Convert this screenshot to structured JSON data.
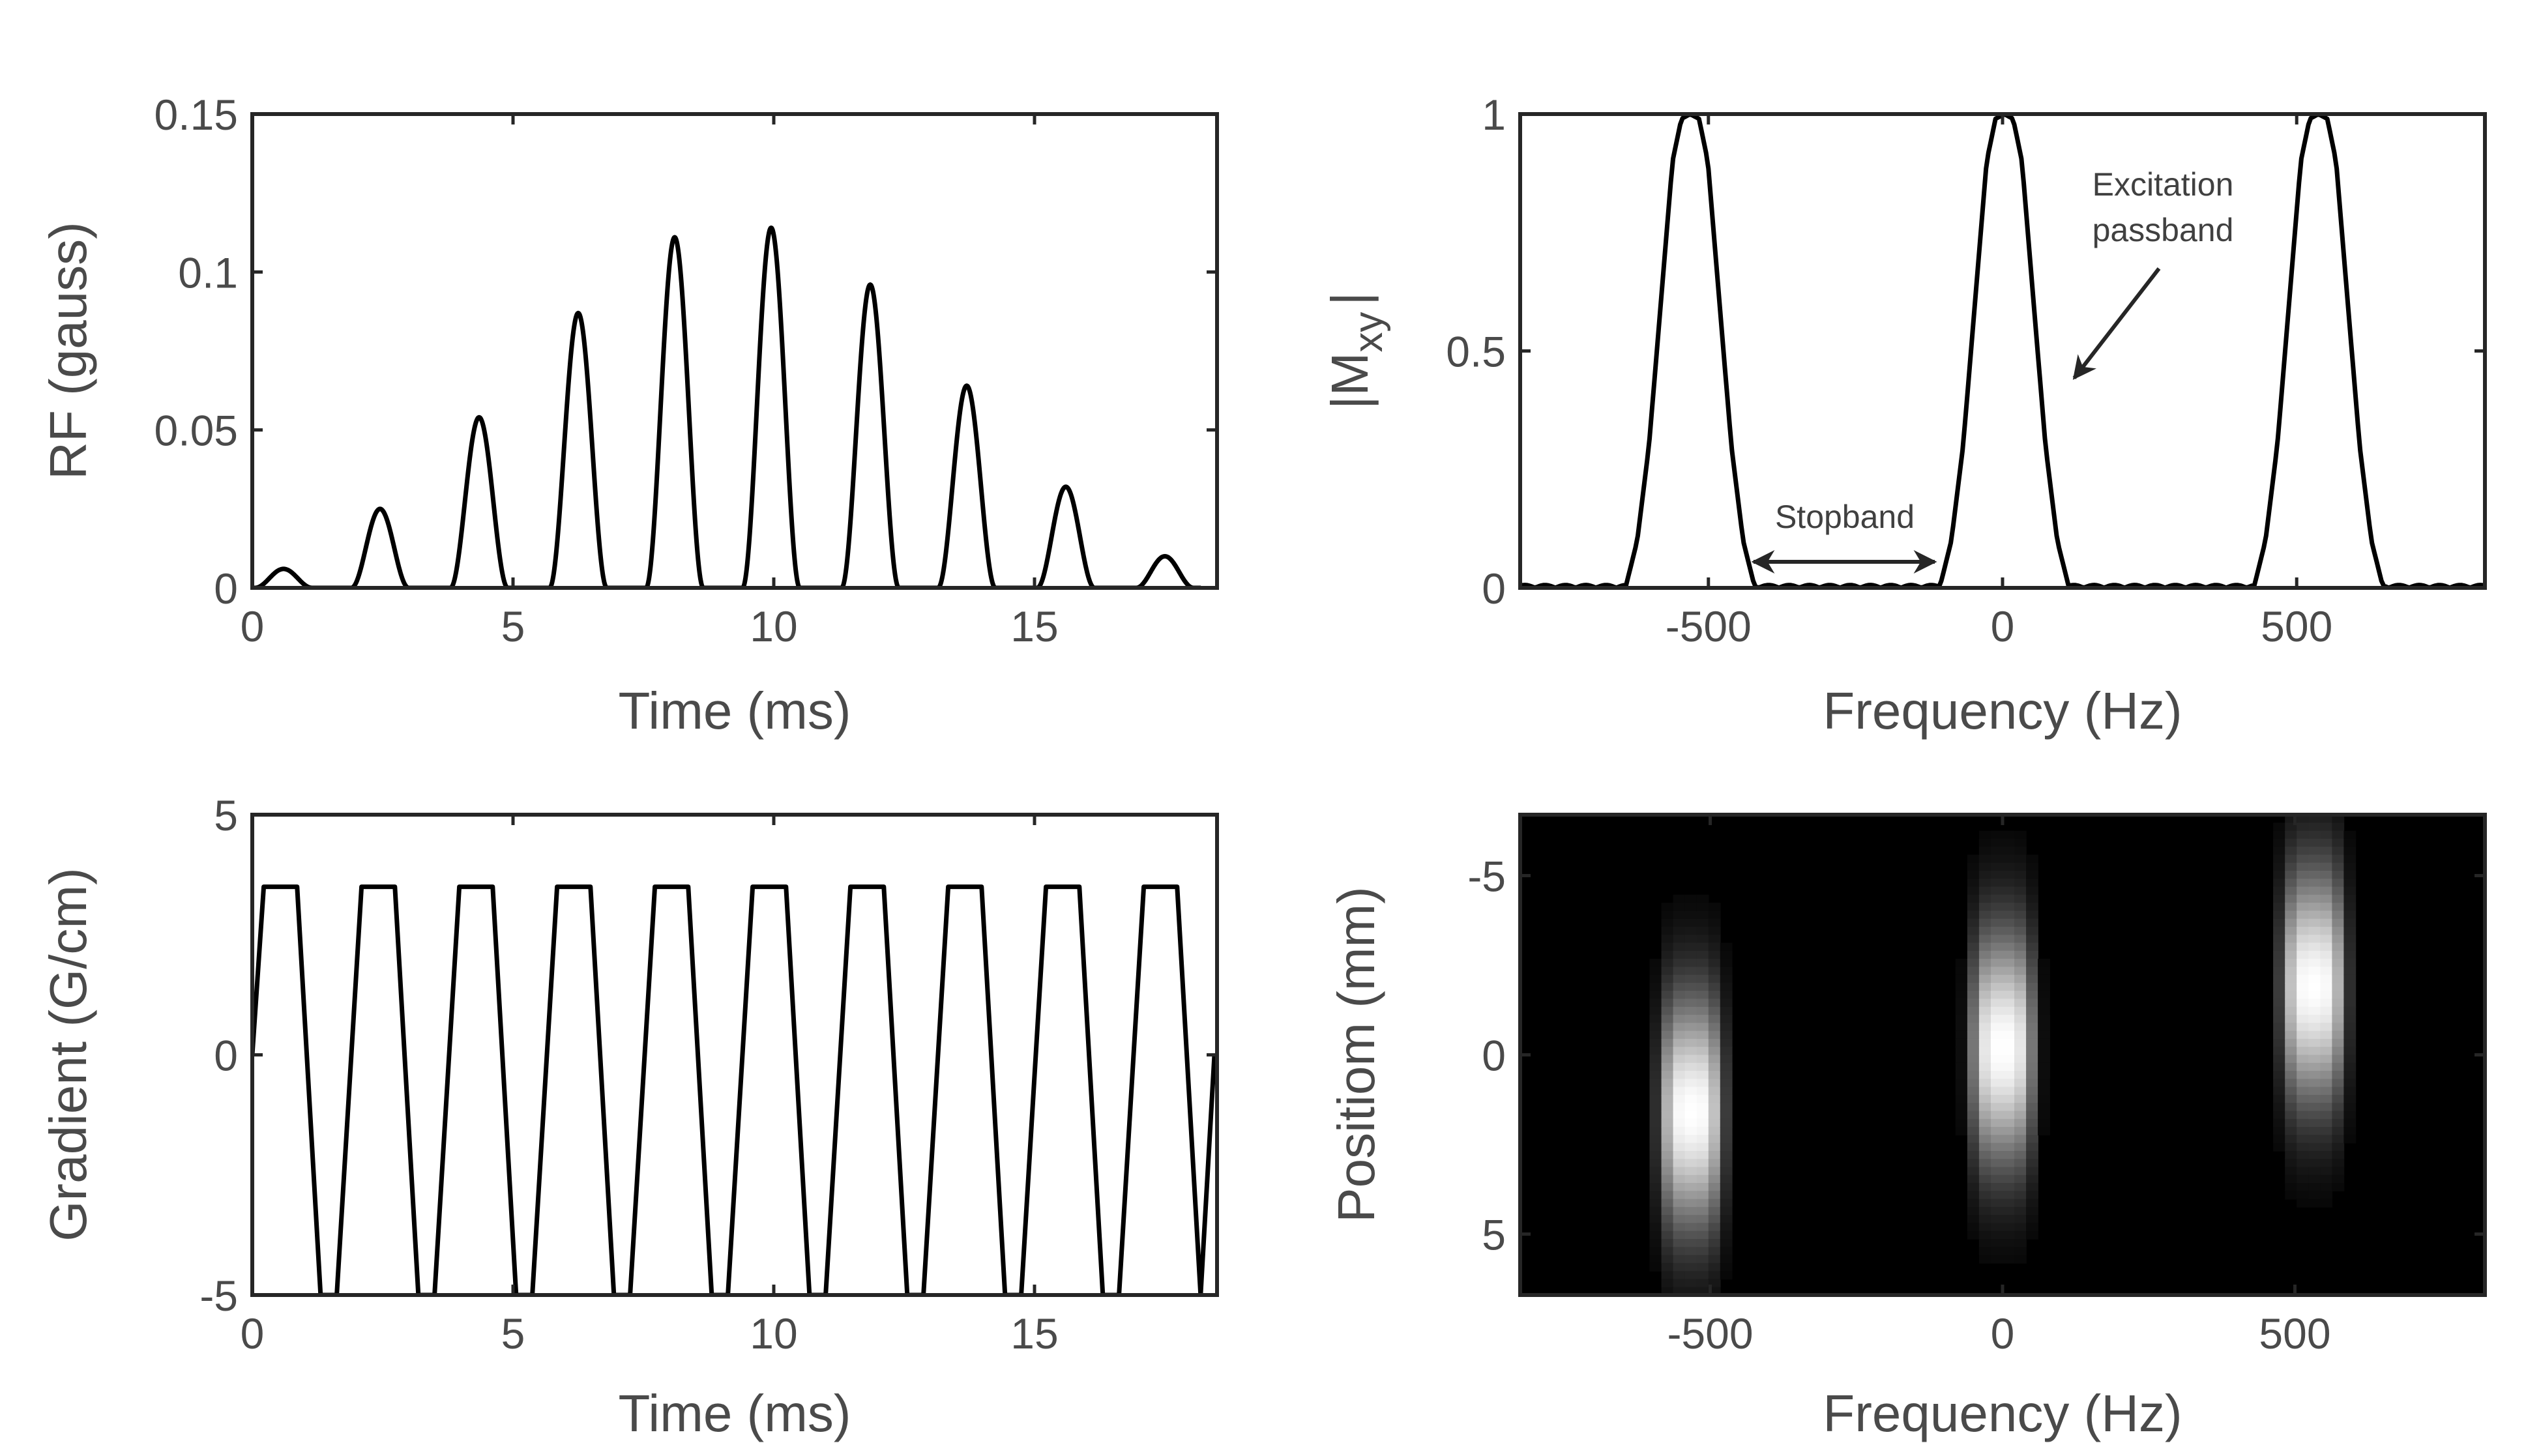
{
  "chart_data": [
    {
      "type": "line",
      "xlabel": "Time (ms)",
      "ylabel": "RF (gauss)",
      "xlim": [
        0,
        18.5
      ],
      "ylim": [
        0,
        0.15
      ],
      "xticks": [
        "0",
        "5",
        "10",
        "15"
      ],
      "yticks": [
        "0",
        "0.05",
        "0.1",
        "0.15"
      ],
      "grid": false,
      "series": [
        {
          "peak_times": [
            0.6,
            2.45,
            4.35,
            6.25,
            8.1,
            9.95,
            11.85,
            13.7,
            15.6,
            17.5
          ],
          "peak_values": [
            0.006,
            0.025,
            0.054,
            0.087,
            0.111,
            0.114,
            0.096,
            0.064,
            0.032,
            0.01
          ],
          "lobe_half_width": 0.55,
          "color": "#000000"
        }
      ]
    },
    {
      "type": "line",
      "xlabel": "Frequency (Hz)",
      "ylabel_main": "|M",
      "ylabel_sub": "xy",
      "ylabel_end": "|",
      "xlim": [
        -820,
        820
      ],
      "ylim": [
        0,
        1
      ],
      "xticks": [
        "-500",
        "0",
        "500"
      ],
      "yticks": [
        "0",
        "0.5",
        "1"
      ],
      "grid": false,
      "series": [
        {
          "passband_centers": [
            -531,
            3,
            537
          ],
          "profile_offsets": [
            -110,
            -90,
            -70,
            -50,
            -30,
            -15,
            0,
            15,
            30,
            50,
            70,
            90,
            110
          ],
          "profile_values": [
            0,
            0.1,
            0.3,
            0.6,
            0.9,
            0.99,
            1,
            0.99,
            0.9,
            0.6,
            0.3,
            0.1,
            0
          ],
          "stopband_ripple": 0.006,
          "color": "#000000"
        }
      ],
      "annotations": {
        "passband_line1": "Excitation",
        "passband_line2": "passband",
        "stopband": "Stopband"
      }
    },
    {
      "type": "line",
      "xlabel": "Time (ms)",
      "ylabel": "Gradient (G/cm)",
      "xlim": [
        0,
        18.5
      ],
      "ylim": [
        -5,
        5
      ],
      "xticks": [
        "0",
        "5",
        "10",
        "15"
      ],
      "yticks": [
        "-5",
        "0",
        "5"
      ],
      "grid": false,
      "series": [
        {
          "t": [
            0,
            0.22,
            0.86,
            1.31,
            1.62,
            2.095,
            2.735,
            3.185,
            3.495,
            3.97,
            4.61,
            5.06,
            5.37,
            5.845,
            6.485,
            6.935,
            7.245,
            7.72,
            8.36,
            8.81,
            9.12,
            9.595,
            10.235,
            10.685,
            10.995,
            11.47,
            12.11,
            12.56,
            12.87,
            13.345,
            13.985,
            14.435,
            14.745,
            15.22,
            15.86,
            16.31,
            16.62,
            17.095,
            17.735,
            18.185,
            18.45
          ],
          "g": [
            0,
            3.5,
            3.5,
            -5,
            -5,
            3.5,
            3.5,
            -5,
            -5,
            3.5,
            3.5,
            -5,
            -5,
            3.5,
            3.5,
            -5,
            -5,
            3.5,
            3.5,
            -5,
            -5,
            3.5,
            3.5,
            -5,
            -5,
            3.5,
            3.5,
            -5,
            -5,
            3.5,
            3.5,
            -5,
            -5,
            3.5,
            3.5,
            -5,
            -5,
            3.5,
            3.5,
            -5,
            0
          ],
          "color": "#000000"
        }
      ]
    },
    {
      "type": "heatmap",
      "xlabel": "Frequency (Hz)",
      "ylabel": "Positiom (mm)",
      "xlim": [
        -825,
        825
      ],
      "ylim": [
        -6.7,
        6.7
      ],
      "y_reversed": true,
      "xticks": [
        "-500",
        "0",
        "500"
      ],
      "yticks": [
        "-5",
        "0",
        "5"
      ],
      "colormap": "gray",
      "grid": false,
      "blobs": [
        {
          "frequency": -532,
          "position": 1.6,
          "freq_sigma": 38,
          "pos_sigma": 2.3
        },
        {
          "frequency": 0,
          "position": -0.2,
          "freq_sigma": 38,
          "pos_sigma": 2.3
        },
        {
          "frequency": 532,
          "position": -1.9,
          "freq_sigma": 38,
          "pos_sigma": 2.3
        }
      ]
    }
  ]
}
